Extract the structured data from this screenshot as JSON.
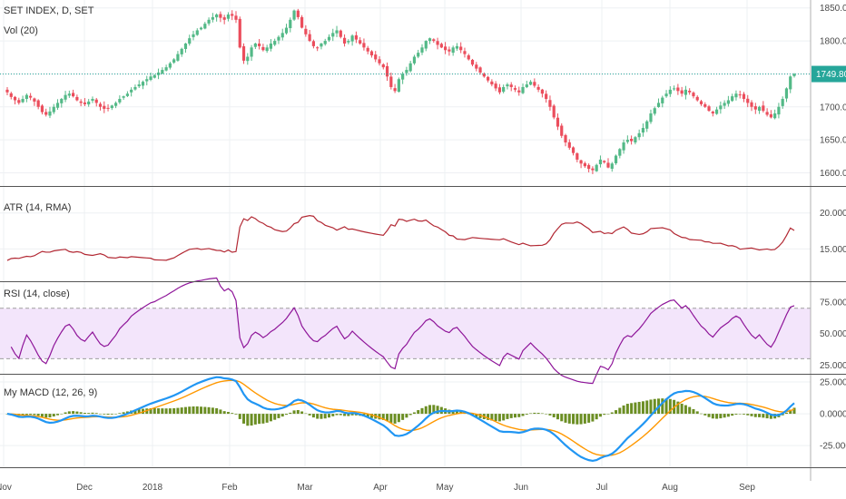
{
  "chart_data": {
    "type": "candlestick-with-indicators",
    "colors": {
      "up": "#53b987",
      "down": "#eb4d5c",
      "atr": "#b22833",
      "rsi": "#8e1599",
      "rsi_band": "#f3e5fb",
      "macd": "#2196f3",
      "signal": "#ff9800",
      "hist": "#6b8e23",
      "price_line": "#26a69a"
    },
    "x_ticks": [
      "Nov",
      "Dec",
      "2018",
      "Feb",
      "Mar",
      "Apr",
      "May",
      "Jun",
      "Jul",
      "Aug",
      "Sep"
    ],
    "price": {
      "title": "SET INDEX, D, SET",
      "volume_label": "Vol (20)",
      "ticks": [
        "1850.00",
        "1800.00",
        "1750.00",
        "1700.00",
        "1650.00",
        "1600.00"
      ],
      "ylim": [
        1580,
        1862
      ],
      "last": 1749.8,
      "last_label": "1749.80",
      "closes": [
        1722,
        1715,
        1710,
        1706,
        1712,
        1718,
        1714,
        1708,
        1700,
        1692,
        1688,
        1693,
        1700,
        1706,
        1712,
        1718,
        1720,
        1716,
        1710,
        1706,
        1704,
        1708,
        1712,
        1706,
        1700,
        1697,
        1698,
        1702,
        1706,
        1712,
        1716,
        1720,
        1726,
        1730,
        1734,
        1738,
        1742,
        1746,
        1748,
        1752,
        1756,
        1760,
        1766,
        1772,
        1780,
        1788,
        1796,
        1804,
        1810,
        1816,
        1820,
        1826,
        1832,
        1836,
        1840,
        1835,
        1832,
        1840,
        1838,
        1832,
        1790,
        1770,
        1776,
        1790,
        1796,
        1792,
        1786,
        1790,
        1796,
        1800,
        1806,
        1812,
        1820,
        1832,
        1846,
        1836,
        1820,
        1810,
        1800,
        1792,
        1790,
        1796,
        1800,
        1806,
        1812,
        1816,
        1806,
        1796,
        1800,
        1808,
        1802,
        1796,
        1790,
        1784,
        1778,
        1772,
        1766,
        1760,
        1746,
        1730,
        1724,
        1742,
        1750,
        1756,
        1766,
        1776,
        1782,
        1790,
        1800,
        1804,
        1800,
        1794,
        1790,
        1786,
        1784,
        1790,
        1792,
        1786,
        1780,
        1772,
        1764,
        1758,
        1752,
        1746,
        1740,
        1734,
        1728,
        1722,
        1730,
        1734,
        1730,
        1726,
        1722,
        1730,
        1734,
        1738,
        1732,
        1726,
        1720,
        1712,
        1700,
        1684,
        1670,
        1656,
        1646,
        1638,
        1630,
        1620,
        1614,
        1610,
        1606,
        1604,
        1612,
        1620,
        1616,
        1608,
        1614,
        1626,
        1636,
        1646,
        1650,
        1648,
        1654,
        1660,
        1668,
        1678,
        1690,
        1698,
        1706,
        1714,
        1720,
        1726,
        1728,
        1724,
        1720,
        1726,
        1722,
        1716,
        1710,
        1704,
        1700,
        1694,
        1690,
        1696,
        1702,
        1706,
        1710,
        1716,
        1720,
        1718,
        1712,
        1706,
        1700,
        1696,
        1700,
        1694,
        1688,
        1684,
        1690,
        1700,
        1712,
        1728,
        1746,
        1750
      ]
    },
    "atr": {
      "label": "ATR (14, RMA)",
      "ticks": [
        "20.0000",
        "15.0000"
      ],
      "ylim": [
        10.5,
        23.5
      ]
    },
    "rsi": {
      "label": "RSI (14, close)",
      "ticks": [
        "75.0000",
        "50.0000",
        "25.0000"
      ],
      "ylim": [
        18,
        90
      ],
      "band": [
        30,
        70
      ]
    },
    "macd": {
      "label": "My MACD (12, 26, 9)",
      "ticks": [
        "25.0000",
        "0.0000",
        "-25.0000"
      ],
      "ylim": [
        -42,
        30
      ]
    }
  }
}
